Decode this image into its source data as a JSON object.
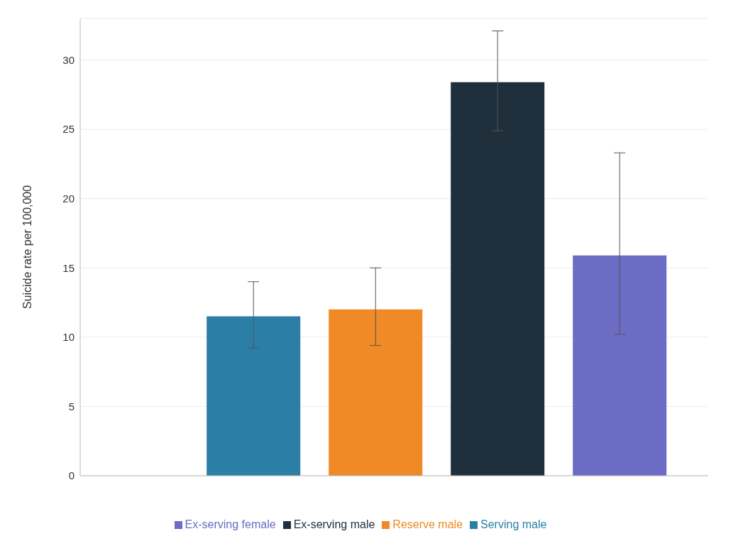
{
  "chart_data": {
    "type": "bar",
    "ylabel": "Suicide rate per 100,000",
    "categories": [
      null
    ],
    "series": [
      {
        "name": "Serving male",
        "color": "#2b7fa6",
        "values": [
          11.5
        ],
        "errors": [
          [
            9.2,
            14.0
          ]
        ]
      },
      {
        "name": "Reserve male",
        "color": "#ef8a26",
        "values": [
          12.0
        ],
        "errors": [
          [
            9.4,
            15.0
          ]
        ]
      },
      {
        "name": "Ex-serving male",
        "color": "#1f2f3b",
        "values": [
          28.4
        ],
        "errors": [
          [
            24.9,
            32.1
          ]
        ]
      },
      {
        "name": "Ex-serving female",
        "color": "#6b6cc4",
        "values": [
          15.9
        ],
        "errors": [
          [
            10.2,
            23.3
          ]
        ]
      }
    ],
    "ylim": [
      0,
      33
    ],
    "yticks": [
      0,
      5,
      10,
      15,
      20,
      25,
      30
    ],
    "grid": "y",
    "legend": "bottom"
  }
}
